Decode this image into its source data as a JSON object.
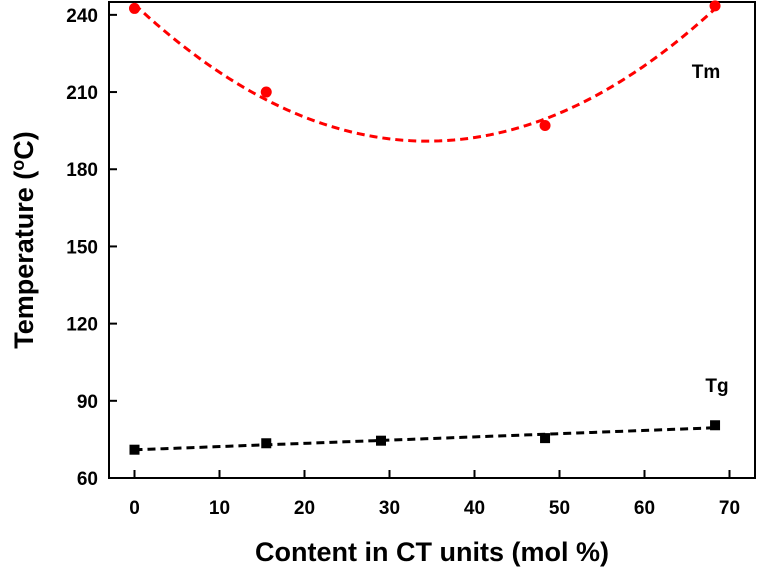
{
  "chart_data": {
    "type": "scatter",
    "xlabel": "Content in CT units (mol %)",
    "ylabel_main": "Temperature (",
    "ylabel_sup": "o",
    "ylabel_tail": "C)",
    "xlim": [
      -3,
      73
    ],
    "ylim": [
      60,
      245
    ],
    "xticks": [
      0,
      10,
      20,
      30,
      40,
      50,
      60,
      70
    ],
    "yticks": [
      60,
      90,
      120,
      150,
      180,
      210,
      240
    ],
    "grid": false,
    "series": [
      {
        "name": "Tm",
        "color": "#ff0000",
        "marker": "circle",
        "x": [
          0,
          15.5,
          48.3,
          68.3
        ],
        "y": [
          242.5,
          210,
          197,
          243.5
        ],
        "fit": "quadratic",
        "fit_x": [
          0,
          68.3
        ]
      },
      {
        "name": "Tg",
        "color": "#000000",
        "marker": "square",
        "x": [
          0,
          15.5,
          29,
          48.3,
          68.3
        ],
        "y": [
          71,
          73.5,
          74.5,
          75.5,
          80.5
        ],
        "fit": "linear",
        "fit_x": [
          0,
          68.3
        ]
      }
    ]
  }
}
